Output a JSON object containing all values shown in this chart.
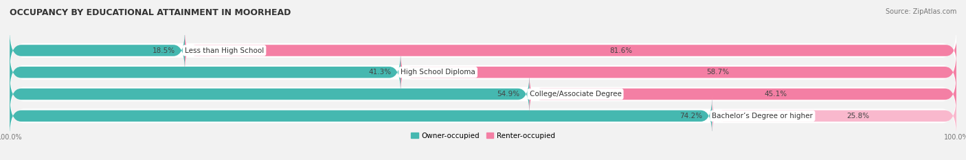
{
  "title": "OCCUPANCY BY EDUCATIONAL ATTAINMENT IN MOORHEAD",
  "source": "Source: ZipAtlas.com",
  "categories": [
    "Less than High School",
    "High School Diploma",
    "College/Associate Degree",
    "Bachelor’s Degree or higher"
  ],
  "owner_pct": [
    18.5,
    41.3,
    54.9,
    74.2
  ],
  "renter_pct": [
    81.6,
    58.7,
    45.1,
    25.8
  ],
  "owner_color": "#45b8b0",
  "renter_color": "#f47fa4",
  "renter_color_light": "#f9b8cd",
  "bar_height": 0.52,
  "background_color": "#f2f2f2",
  "row_bg_color": "#e8e8e8",
  "title_fontsize": 9.0,
  "label_fontsize": 7.5,
  "pct_fontsize": 7.5,
  "tick_fontsize": 7.0,
  "legend_fontsize": 7.5,
  "source_fontsize": 7.0,
  "figsize": [
    14.06,
    2.33
  ],
  "dpi": 100
}
